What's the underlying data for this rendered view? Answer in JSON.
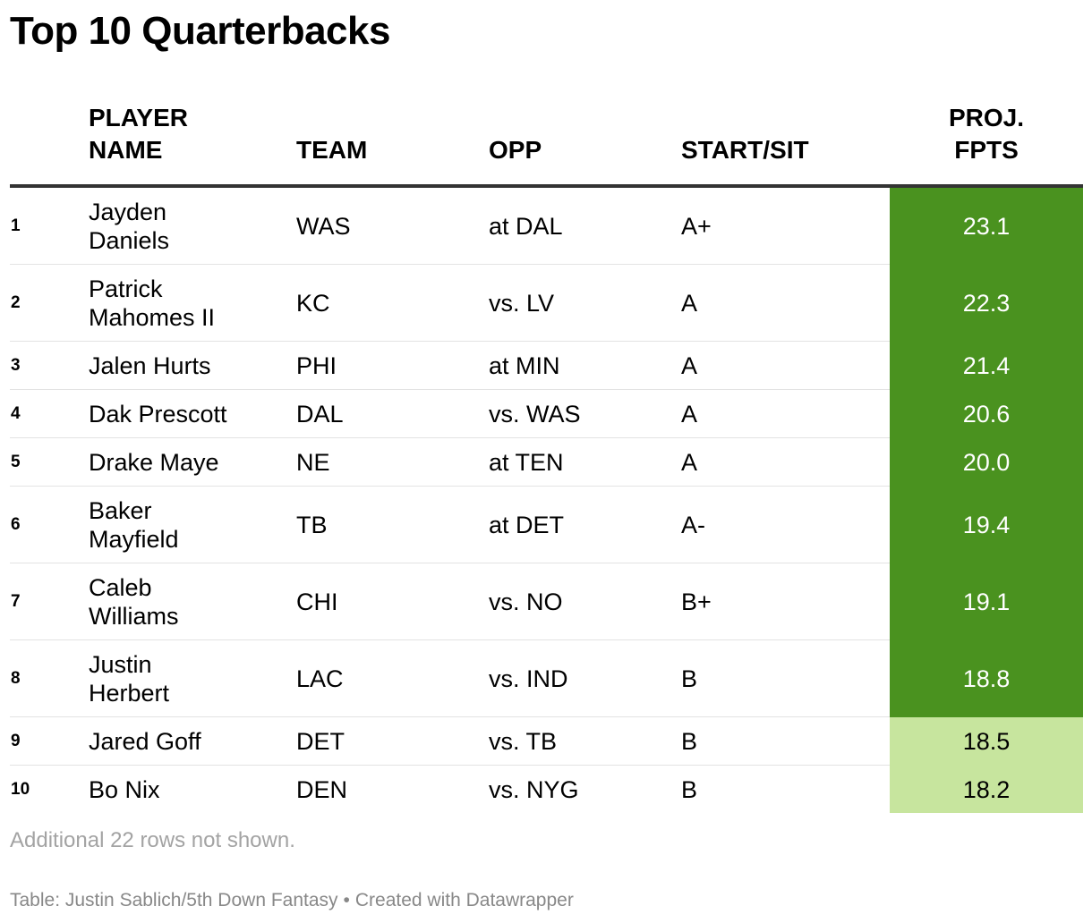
{
  "title": "Top 10 Quarterbacks",
  "columns": {
    "rank": "",
    "name_line1": "PLAYER",
    "name_line2": "NAME",
    "team": "TEAM",
    "opp": "OPP",
    "start_sit": "START/SIT",
    "proj_line1": "PROJ.",
    "proj_line2": "FPTS"
  },
  "colors": {
    "dark_green": "#4a921f",
    "light_green": "#c7e59e"
  },
  "rows": [
    {
      "rank": "1",
      "name_line1": "Jayden",
      "name_line2": "Daniels",
      "team": "WAS",
      "opp": "at DAL",
      "grade": "A+",
      "proj": "23.1"
    },
    {
      "rank": "2",
      "name_line1": "Patrick",
      "name_line2": "Mahomes II",
      "team": "KC",
      "opp": "vs. LV",
      "grade": "A",
      "proj": "22.3"
    },
    {
      "rank": "3",
      "name_line1": "Jalen Hurts",
      "name_line2": "",
      "team": "PHI",
      "opp": "at MIN",
      "grade": "A",
      "proj": "21.4"
    },
    {
      "rank": "4",
      "name_line1": "Dak Prescott",
      "name_line2": "",
      "team": "DAL",
      "opp": "vs. WAS",
      "grade": "A",
      "proj": "20.6"
    },
    {
      "rank": "5",
      "name_line1": "Drake Maye",
      "name_line2": "",
      "team": "NE",
      "opp": "at TEN",
      "grade": "A",
      "proj": "20.0"
    },
    {
      "rank": "6",
      "name_line1": "Baker",
      "name_line2": "Mayfield",
      "team": "TB",
      "opp": "at DET",
      "grade": "A-",
      "proj": "19.4"
    },
    {
      "rank": "7",
      "name_line1": "Caleb",
      "name_line2": "Williams",
      "team": "CHI",
      "opp": "vs. NO",
      "grade": "B+",
      "proj": "19.1"
    },
    {
      "rank": "8",
      "name_line1": "Justin",
      "name_line2": "Herbert",
      "team": "LAC",
      "opp": "vs. IND",
      "grade": "B",
      "proj": "18.8"
    },
    {
      "rank": "9",
      "name_line1": "Jared Goff",
      "name_line2": "",
      "team": "DET",
      "opp": "vs. TB",
      "grade": "B",
      "proj": "18.5"
    },
    {
      "rank": "10",
      "name_line1": "Bo Nix",
      "name_line2": "",
      "team": "DEN",
      "opp": "vs. NYG",
      "grade": "B",
      "proj": "18.2"
    }
  ],
  "chart_data": {
    "type": "table",
    "title": "Top 10 Quarterbacks",
    "headers": [
      "",
      "PLAYER NAME",
      "TEAM",
      "OPP",
      "START/SIT",
      "PROJ. FPTS"
    ],
    "rows": [
      [
        1,
        "Jayden Daniels",
        "WAS",
        "at DAL",
        "A+",
        23.1
      ],
      [
        2,
        "Patrick Mahomes II",
        "KC",
        "vs. LV",
        "A",
        22.3
      ],
      [
        3,
        "Jalen Hurts",
        "PHI",
        "at MIN",
        "A",
        21.4
      ],
      [
        4,
        "Dak Prescott",
        "DAL",
        "vs. WAS",
        "A",
        20.6
      ],
      [
        5,
        "Drake Maye",
        "NE",
        "at TEN",
        "A",
        20.0
      ],
      [
        6,
        "Baker Mayfield",
        "TB",
        "at DET",
        "A-",
        19.4
      ],
      [
        7,
        "Caleb Williams",
        "CHI",
        "vs. NO",
        "B+",
        19.1
      ],
      [
        8,
        "Justin Herbert",
        "LAC",
        "vs. IND",
        "B",
        18.8
      ],
      [
        9,
        "Jared Goff",
        "DET",
        "vs. TB",
        "B",
        18.5
      ],
      [
        10,
        "Bo Nix",
        "DEN",
        "vs. NYG",
        "B",
        18.2
      ]
    ],
    "highlight_column": "PROJ. FPTS",
    "highlight_threshold": 18.6
  },
  "note": "Additional 22 rows not shown.",
  "footer": {
    "source": "Table: Justin Sablich/5th Down Fantasy",
    "separator": "•",
    "credit": "Created with Datawrapper"
  }
}
